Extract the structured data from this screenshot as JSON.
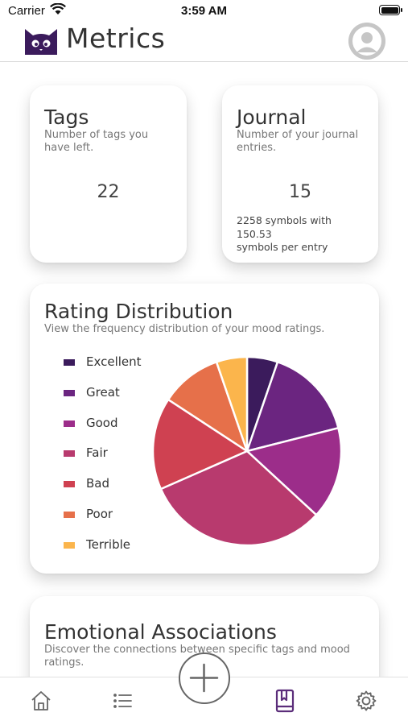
{
  "status_bar": {
    "carrier": "Carrier",
    "time": "3:59 AM"
  },
  "header": {
    "title": "Metrics"
  },
  "tags_card": {
    "title": "Tags",
    "subtitle": "Number of tags you have left.",
    "value": "22"
  },
  "journal_card": {
    "title": "Journal",
    "subtitle": "Number of your journal entries.",
    "value": "15",
    "detail_line1": "2258 symbols with",
    "detail_line2": "150.53",
    "detail_line3": "symbols per entry"
  },
  "rating_card": {
    "title": "Rating Distribution",
    "subtitle": "View the frequency distribution of your mood ratings."
  },
  "chart_data": {
    "type": "pie",
    "title": "Rating Distribution",
    "categories": [
      "Excellent",
      "Great",
      "Good",
      "Fair",
      "Bad",
      "Poor",
      "Terrible"
    ],
    "values": [
      1,
      3,
      3,
      6,
      3,
      2,
      1
    ],
    "colors": [
      "#3b1b5c",
      "#6b2580",
      "#9c2d8a",
      "#b83a6e",
      "#cf4151",
      "#e6704a",
      "#fbb54c"
    ],
    "legend": "left",
    "legend_entries": [
      "Excellent",
      "Great",
      "Good",
      "Fair",
      "Bad",
      "Poor",
      "Terrible"
    ]
  },
  "emotional_card": {
    "title": "Emotional Associations",
    "subtitle": "Discover the connections between specific tags and mood ratings."
  },
  "tab_bar": {
    "items": [
      {
        "icon": "home-icon"
      },
      {
        "icon": "list-icon"
      },
      {
        "icon": "add-icon"
      },
      {
        "icon": "book-icon",
        "active": true
      },
      {
        "icon": "gear-icon"
      }
    ],
    "active_color": "#5b2d7a",
    "inactive_color": "#666666"
  }
}
